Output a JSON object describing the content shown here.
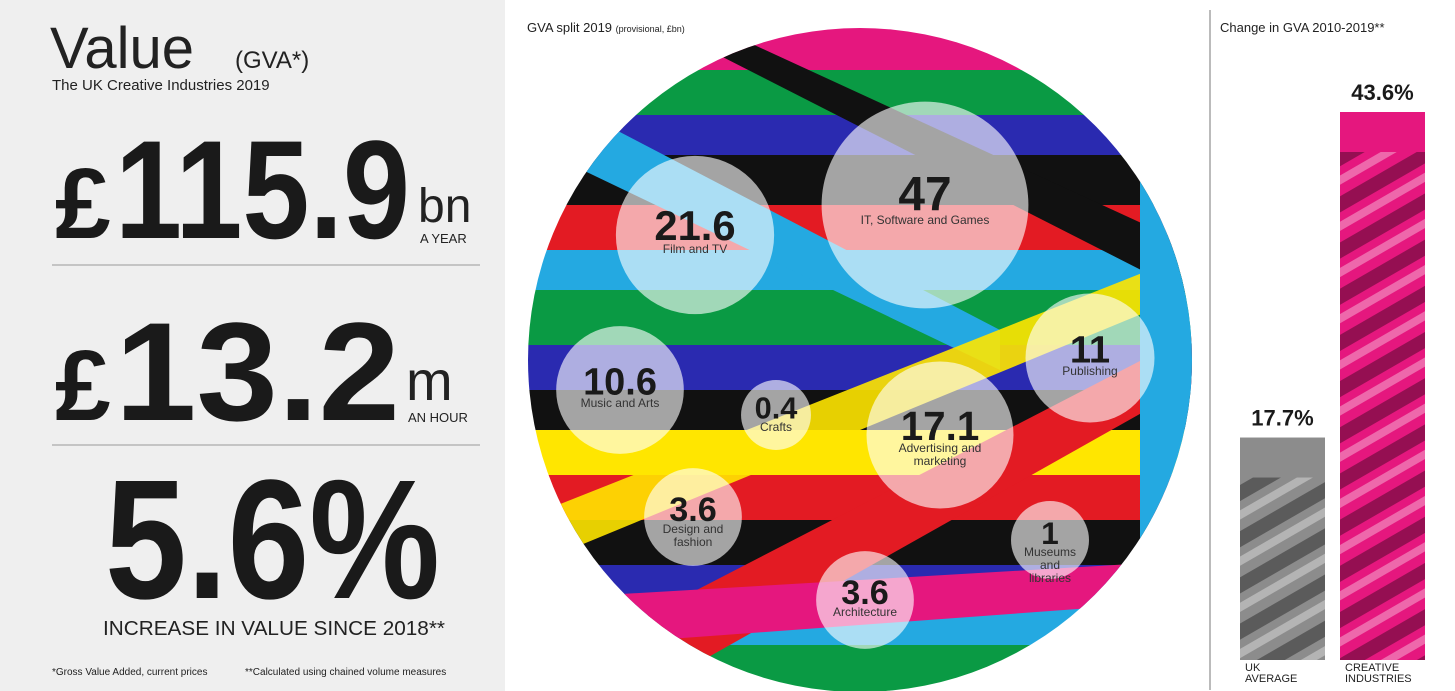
{
  "value_panel": {
    "title": "Value",
    "title_note": "(GVA*)",
    "subtitle": "The UK Creative Industries 2019",
    "stats": [
      {
        "prefix": "£",
        "figure": "115.9",
        "unit": "bn",
        "caption": "A YEAR"
      },
      {
        "prefix": "£",
        "figure": "13.2",
        "unit": "m",
        "caption": "AN HOUR"
      },
      {
        "figure": "5.6%",
        "caption": "INCREASE IN VALUE SINCE 2018**"
      }
    ],
    "footnotes": [
      "*Gross Value Added, current prices",
      "**Calculated using chained volume measures"
    ]
  },
  "chart_data": [
    {
      "type": "bubble",
      "title": "GVA split 2019",
      "subtitle": "(provisional, £bn)",
      "categories": [
        "Film and TV",
        "IT, Software and Games",
        "Publishing",
        "Music and Arts",
        "Crafts",
        "Advertising and marketing",
        "Design and fashion",
        "Museums and libraries",
        "Architecture"
      ],
      "values": [
        21.6,
        47,
        11,
        10.6,
        0.4,
        17.1,
        3.6,
        1,
        3.6
      ]
    },
    {
      "type": "bar",
      "title": "Change in GVA 2010-2019**",
      "categories": [
        "UK AVERAGE",
        "CREATIVE INDUSTRIES"
      ],
      "values": [
        17.7,
        43.6
      ],
      "value_labels": [
        "17.7%",
        "43.6%"
      ],
      "colors": [
        "#8c8c8c",
        "#e5177e"
      ]
    }
  ]
}
